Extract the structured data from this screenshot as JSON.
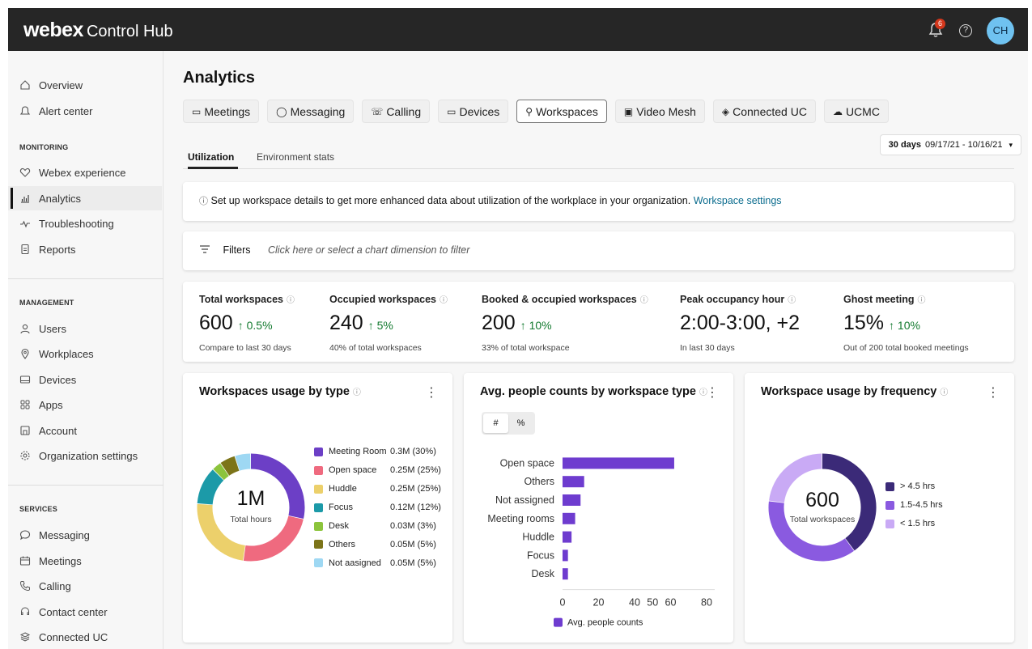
{
  "app": {
    "logo": "webex",
    "product": "Control Hub"
  },
  "header": {
    "notifications_count": "6",
    "avatar_initials": "CH"
  },
  "sidebar": {
    "top_items": [
      {
        "label": "Overview",
        "icon": "home-icon"
      },
      {
        "label": "Alert center",
        "icon": "bell-icon"
      }
    ],
    "monitoring_label": "MONITORING",
    "monitoring_items": [
      {
        "label": "Webex experience",
        "icon": "heart-icon"
      },
      {
        "label": "Analytics",
        "icon": "analytics-icon",
        "active": true
      },
      {
        "label": "Troubleshooting",
        "icon": "pulse-icon"
      },
      {
        "label": "Reports",
        "icon": "report-icon"
      }
    ],
    "management_label": "MANAGEMENT",
    "management_items": [
      {
        "label": "Users",
        "icon": "user-icon"
      },
      {
        "label": "Workplaces",
        "icon": "location-icon"
      },
      {
        "label": "Devices",
        "icon": "device-icon"
      },
      {
        "label": "Apps",
        "icon": "apps-icon"
      },
      {
        "label": "Account",
        "icon": "account-icon"
      },
      {
        "label": "Organization settings",
        "icon": "settings-icon"
      }
    ],
    "services_label": "SERVICES",
    "services_items": [
      {
        "label": "Messaging",
        "icon": "message-icon"
      },
      {
        "label": "Meetings",
        "icon": "meetings-icon"
      },
      {
        "label": "Calling",
        "icon": "phone-icon"
      },
      {
        "label": "Contact center",
        "icon": "headset-icon"
      },
      {
        "label": "Connected UC",
        "icon": "connected-uc-icon"
      }
    ]
  },
  "page": {
    "title": "Analytics"
  },
  "tabs": [
    {
      "label": "Meetings",
      "icon": "meetings-icon"
    },
    {
      "label": "Messaging",
      "icon": "message-icon"
    },
    {
      "label": "Calling",
      "icon": "phone-icon"
    },
    {
      "label": "Devices",
      "icon": "device-icon"
    },
    {
      "label": "Workspaces",
      "icon": "location-icon",
      "selected": true
    },
    {
      "label": "Video Mesh",
      "icon": "video-mesh-icon"
    },
    {
      "label": "Connected UC",
      "icon": "connected-uc-icon"
    },
    {
      "label": "UCMC",
      "icon": "cloud-icon"
    }
  ],
  "subtabs": {
    "utilization": "Utilization",
    "environment": "Environment stats"
  },
  "date_range": {
    "period": "30 days",
    "dates": "09/17/21 - 10/16/21"
  },
  "info_banner": {
    "text": "Set up workspace details to get more enhanced data about utilization of the workplace in your organization.",
    "link": "Workspace settings"
  },
  "filters": {
    "label": "Filters",
    "hint": "Click here or select a chart dimension to filter"
  },
  "kpis": [
    {
      "title": "Total workspaces",
      "value": "600",
      "change": "↑ 0.5%",
      "note": "Compare to last 30 days"
    },
    {
      "title": "Occupied workspaces",
      "value": "240",
      "change": "↑ 5%",
      "note": "40% of total workspaces"
    },
    {
      "title": "Booked & occupied workspaces",
      "value": "200",
      "change": "↑ 10%",
      "note": "33% of total workspace"
    },
    {
      "title": "Peak occupancy hour",
      "value": "2:00-3:00, +2",
      "change": "",
      "note": "In last 30 days"
    },
    {
      "title": "Ghost meeting",
      "value": "15%",
      "change": "↑ 10%",
      "note": "Out of 200 total booked meetings"
    }
  ],
  "colors": {
    "accent": "#0b6c8e",
    "positive": "#137a2f",
    "bar": "#6e3ccf"
  },
  "chart_data": [
    {
      "type": "pie",
      "title": "Workspaces usage by type",
      "center_value": "1M",
      "center_label": "Total hours",
      "slices": [
        {
          "label": "Meeting Room",
          "display": "0.3M (30%)",
          "value": 30,
          "color": "#6c3fc6"
        },
        {
          "label": "Open space",
          "display": "0.25M (25%)",
          "value": 25,
          "color": "#ef6a7f"
        },
        {
          "label": "Huddle",
          "display": "0.25M (25%)",
          "value": 25,
          "color": "#ecd06b"
        },
        {
          "label": "Focus",
          "display": "0.12M (12%)",
          "value": 12,
          "color": "#1c9aa8"
        },
        {
          "label": "Desk",
          "display": "0.03M (3%)",
          "value": 3,
          "color": "#8cc43c"
        },
        {
          "label": "Others",
          "display": "0.05M (5%)",
          "value": 5,
          "color": "#7c7419"
        },
        {
          "label": "Not aasigned",
          "display": "0.05M (5%)",
          "value": 5,
          "color": "#9ed8f3"
        }
      ]
    },
    {
      "type": "bar",
      "orientation": "horizontal",
      "title": "Avg. people counts by workspace type",
      "toggle": [
        "#",
        "%"
      ],
      "categories": [
        "Open space",
        "Others",
        "Not assigned",
        "Meeting rooms",
        "Huddle",
        "Focus",
        "Desk"
      ],
      "values": [
        62,
        12,
        10,
        7,
        5,
        3,
        3
      ],
      "xticks": [
        0,
        20,
        40,
        50,
        60,
        80
      ],
      "xlim": [
        0,
        80
      ],
      "series_name": "Avg. people counts"
    },
    {
      "type": "pie",
      "title": "Workspace usage by frequency",
      "center_value": "600",
      "center_label": "Total workspaces",
      "slices": [
        {
          "label": "> 4.5 hrs",
          "value": 40,
          "color": "#3b2a78"
        },
        {
          "label": "1.5-4.5 hrs",
          "value": 37,
          "color": "#8a5ae0"
        },
        {
          "label": "< 1.5 hrs",
          "value": 23,
          "color": "#c9aaf5"
        }
      ]
    }
  ]
}
